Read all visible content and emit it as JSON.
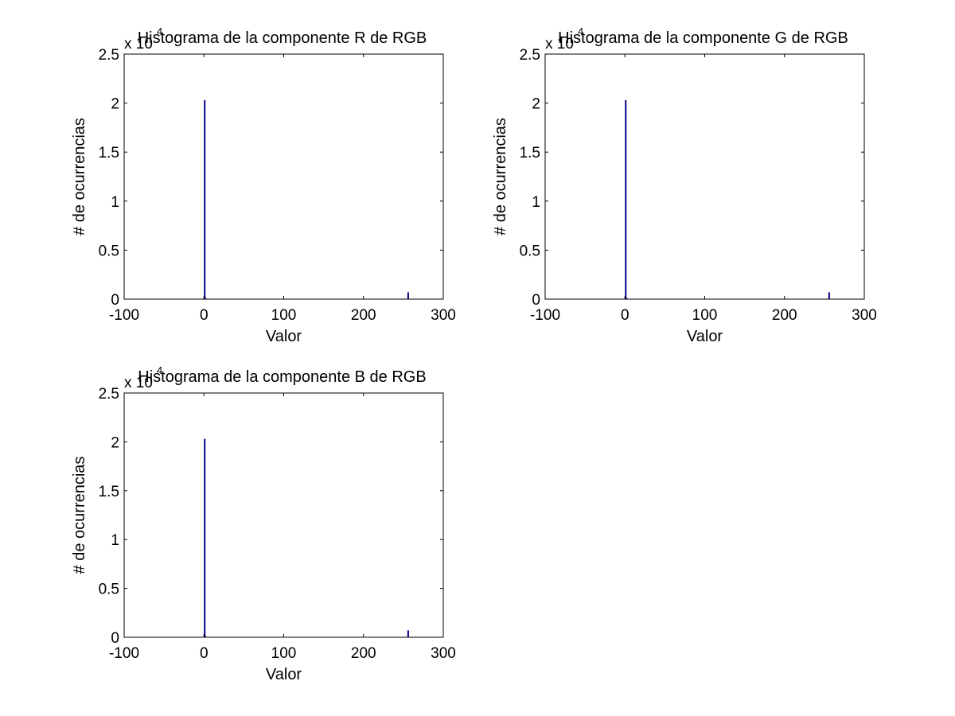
{
  "chart_data": [
    {
      "type": "bar",
      "title": "Histograma de la componente R de RGB",
      "xlabel": "Valor",
      "ylabel": "# de ocurrencias",
      "y_multiplier": "x 10",
      "y_exponent": "4",
      "xlim": [
        -100,
        300
      ],
      "ylim": [
        0,
        2.5
      ],
      "x_ticks": [
        -100,
        0,
        100,
        200,
        300
      ],
      "y_ticks": [
        0,
        0.5,
        1,
        1.5,
        2,
        2.5
      ],
      "x_tick_labels": [
        "-100",
        "0",
        "100",
        "200",
        "300"
      ],
      "y_tick_labels": [
        "0",
        "0.5",
        "1",
        "1.5",
        "2",
        "2.5"
      ],
      "grid": false,
      "bar_color": "#00008B",
      "x": [
        0,
        1,
        2,
        255
      ],
      "values": [
        2.03,
        0.01,
        0.005,
        0.07
      ]
    },
    {
      "type": "bar",
      "title": "Histograma de la componente G de RGB",
      "xlabel": "Valor",
      "ylabel": "# de ocurrencias",
      "y_multiplier": "x 10",
      "y_exponent": "4",
      "xlim": [
        -100,
        300
      ],
      "ylim": [
        0,
        2.5
      ],
      "x_ticks": [
        -100,
        0,
        100,
        200,
        300
      ],
      "y_ticks": [
        0,
        0.5,
        1,
        1.5,
        2,
        2.5
      ],
      "x_tick_labels": [
        "-100",
        "0",
        "100",
        "200",
        "300"
      ],
      "y_tick_labels": [
        "0",
        "0.5",
        "1",
        "1.5",
        "2",
        "2.5"
      ],
      "grid": false,
      "bar_color": "#00008B",
      "x": [
        0,
        1,
        2,
        255
      ],
      "values": [
        2.03,
        0.01,
        0.005,
        0.07
      ]
    },
    {
      "type": "bar",
      "title": "Histograma de la componente B de RGB",
      "xlabel": "Valor",
      "ylabel": "# de ocurrencias",
      "y_multiplier": "x 10",
      "y_exponent": "4",
      "xlim": [
        -100,
        300
      ],
      "ylim": [
        0,
        2.5
      ],
      "x_ticks": [
        -100,
        0,
        100,
        200,
        300
      ],
      "y_ticks": [
        0,
        0.5,
        1,
        1.5,
        2,
        2.5
      ],
      "x_tick_labels": [
        "-100",
        "0",
        "100",
        "200",
        "300"
      ],
      "y_tick_labels": [
        "0",
        "0.5",
        "1",
        "1.5",
        "2",
        "2.5"
      ],
      "grid": false,
      "bar_color": "#00008B",
      "x": [
        0,
        1,
        2,
        255
      ],
      "values": [
        2.03,
        0.01,
        0.005,
        0.07
      ]
    }
  ]
}
